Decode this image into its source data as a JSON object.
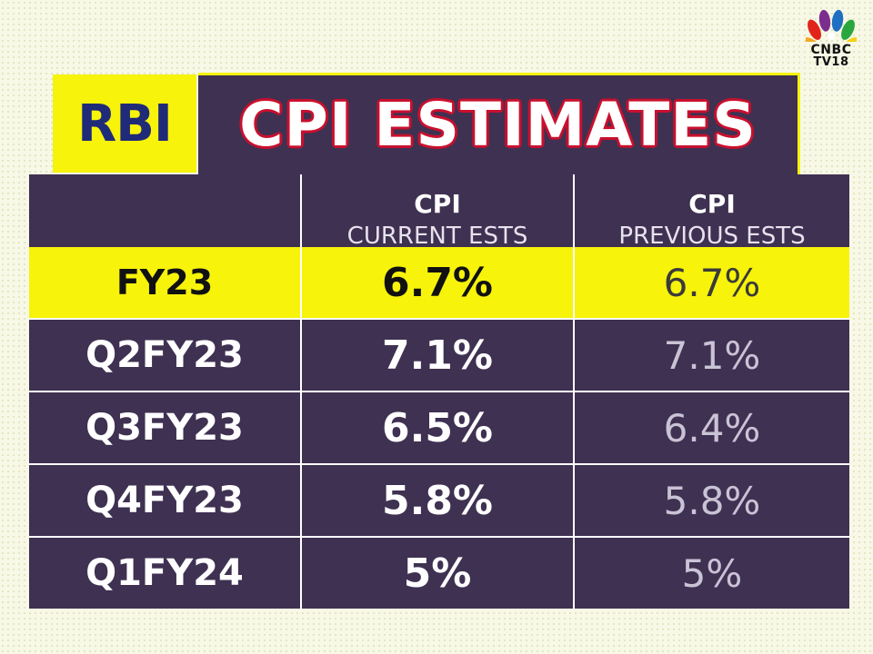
{
  "logo": {
    "line1": "CNBC",
    "line2": "TV18"
  },
  "header": {
    "badge": "RBI",
    "title": "CPI ESTIMATES"
  },
  "table": {
    "columns": [
      {
        "top": "",
        "sub": ""
      },
      {
        "top": "CPI",
        "sub": "CURRENT ESTS"
      },
      {
        "top": "CPI",
        "sub": "PREVIOUS ESTS"
      }
    ],
    "rows": [
      {
        "period": "FY23",
        "current": "6.7%",
        "previous": "6.7%",
        "highlighted": true
      },
      {
        "period": "Q2FY23",
        "current": "7.1%",
        "previous": "7.1%"
      },
      {
        "period": "Q3FY23",
        "current": "6.5%",
        "previous": "6.4%"
      },
      {
        "period": "Q4FY23",
        "current": "5.8%",
        "previous": "5.8%"
      },
      {
        "period": "Q1FY24",
        "current": "5%",
        "previous": "5%"
      }
    ]
  },
  "colors": {
    "panel": "#3f3152",
    "highlight": "#f7f30a",
    "badge_text": "#1f2a78",
    "title_outline": "#c8102e",
    "background": "#f7f8e6"
  }
}
